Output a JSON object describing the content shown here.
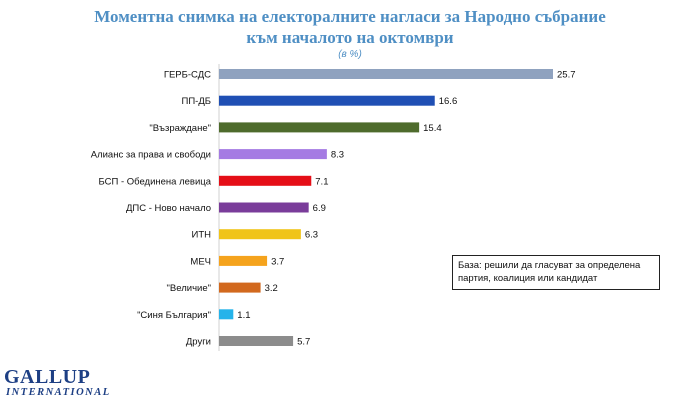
{
  "chart_data": {
    "type": "bar",
    "orientation": "horizontal",
    "title_line1": "Моментна снимка на електоралните нагласи за Народно събрание",
    "title_line2": "към началото на октомври",
    "subtitle": "(в %)",
    "categories": [
      "ГЕРБ-СДС",
      "ПП-ДБ",
      "\"Възраждане\"",
      "Алианс за права и свободи",
      "БСП - Обединена левица",
      "ДПС - Ново начало",
      "ИТН",
      "МЕЧ",
      "\"Величие\"",
      "\"Синя България\"",
      "Други"
    ],
    "values": [
      25.7,
      16.6,
      15.4,
      8.3,
      7.1,
      6.9,
      6.3,
      3.7,
      3.2,
      1.1,
      5.7
    ],
    "value_labels": [
      "25.7",
      "16.6",
      "15.4",
      "8.3",
      "7.1",
      "6.9",
      "6.3",
      "3.7",
      "3.2",
      "1.1",
      "5.7"
    ],
    "colors": [
      "#8fa2bf",
      "#1f4fb4",
      "#4e6b2c",
      "#a57be3",
      "#e50e17",
      "#7a3c9a",
      "#f0c419",
      "#f5a31d",
      "#d2691e",
      "#25b3ea",
      "#8c8c8c"
    ],
    "xlim": [
      0,
      30
    ],
    "grid": false,
    "legend": "none"
  },
  "note": {
    "line1": "База: решили да гласуват за определена",
    "line2": "партия, коалиция или кандидат"
  },
  "logo": {
    "main": "GALLUP",
    "sub": "INTERNATIONAL"
  }
}
